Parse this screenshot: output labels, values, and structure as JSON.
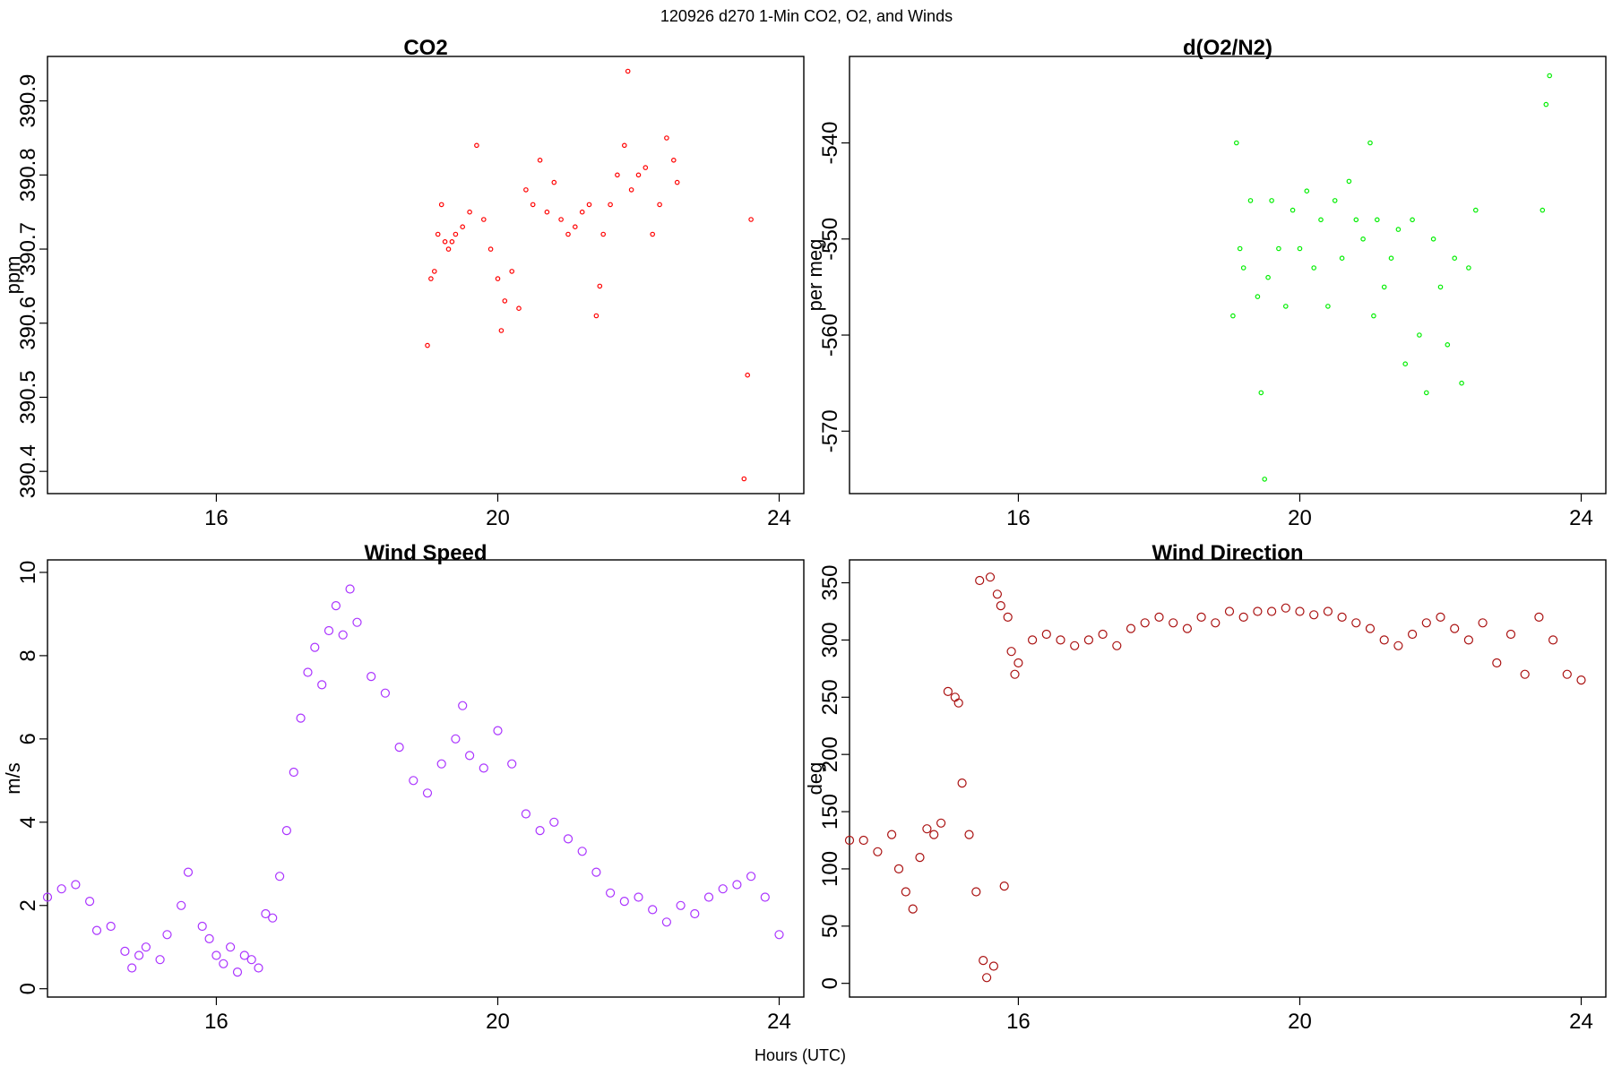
{
  "figure": {
    "title": "120926   d270   1-Min CO2, O2, and Winds",
    "xlabel": "Hours (UTC)"
  },
  "chart_data": [
    {
      "id": "co2",
      "type": "scatter",
      "title": "CO2",
      "xlabel": "",
      "ylabel": "ppm",
      "xlim": [
        13.6,
        24.35
      ],
      "ylim": [
        390.37,
        390.96
      ],
      "xticks": [
        16,
        20,
        24
      ],
      "yticks": [
        390.4,
        390.5,
        390.6,
        390.7,
        390.8,
        390.9
      ],
      "color": "#ff0000",
      "grid": false,
      "series": [
        {
          "x": [
            19.0,
            19.05,
            19.1,
            19.15,
            19.2,
            19.25,
            19.3,
            19.35,
            19.4,
            19.5,
            19.6,
            19.7,
            19.8,
            19.9,
            20.0,
            20.05,
            20.1,
            20.2,
            20.3,
            20.4,
            20.5,
            20.6,
            20.7,
            20.8,
            20.9,
            21.0,
            21.1,
            21.2,
            21.3,
            21.4,
            21.45,
            21.5,
            21.6,
            21.7,
            21.8,
            21.85,
            21.9,
            22.0,
            22.1,
            22.2,
            22.3,
            22.4,
            22.5,
            22.55,
            23.5,
            23.55,
            23.6
          ],
          "y": [
            390.57,
            390.66,
            390.67,
            390.72,
            390.76,
            390.71,
            390.7,
            390.71,
            390.72,
            390.73,
            390.75,
            390.84,
            390.74,
            390.7,
            390.66,
            390.59,
            390.63,
            390.67,
            390.62,
            390.78,
            390.76,
            390.82,
            390.75,
            390.79,
            390.74,
            390.72,
            390.73,
            390.75,
            390.76,
            390.61,
            390.65,
            390.72,
            390.76,
            390.8,
            390.84,
            390.94,
            390.78,
            390.8,
            390.81,
            390.72,
            390.76,
            390.85,
            390.82,
            390.79,
            390.39,
            390.53,
            390.74
          ]
        }
      ]
    },
    {
      "id": "o2",
      "type": "scatter",
      "title": "d(O2/N2)",
      "xlabel": "",
      "ylabel": "per meg",
      "xlim": [
        13.6,
        24.35
      ],
      "ylim": [
        -576.5,
        -531
      ],
      "xticks": [
        16,
        20,
        24
      ],
      "yticks": [
        -540,
        -550,
        -560,
        -570
      ],
      "color": "#00ee00",
      "grid": false,
      "series": [
        {
          "x": [
            19.05,
            19.1,
            19.15,
            19.2,
            19.3,
            19.4,
            19.45,
            19.5,
            19.55,
            19.6,
            19.7,
            19.8,
            19.9,
            20.0,
            20.1,
            20.2,
            20.3,
            20.4,
            20.5,
            20.6,
            20.7,
            20.8,
            20.9,
            21.0,
            21.05,
            21.1,
            21.2,
            21.3,
            21.4,
            21.5,
            21.6,
            21.7,
            21.8,
            21.9,
            22.0,
            22.1,
            22.2,
            22.3,
            22.4,
            22.5,
            23.45,
            23.5,
            23.55
          ],
          "y": [
            -558,
            -540,
            -551,
            -553,
            -546,
            -556,
            -566,
            -575,
            -554,
            -546,
            -551,
            -557,
            -547,
            -551,
            -545,
            -553,
            -548,
            -557,
            -546,
            -552,
            -544,
            -548,
            -550,
            -540,
            -558,
            -548,
            -555,
            -552,
            -549,
            -563,
            -548,
            -560,
            -566,
            -550,
            -555,
            -561,
            -552,
            -565,
            -553,
            -547,
            -547,
            -536,
            -533
          ]
        }
      ]
    },
    {
      "id": "wind-speed",
      "type": "scatter",
      "title": "Wind Speed",
      "xlabel": "",
      "ylabel": "m/s",
      "xlim": [
        13.6,
        24.35
      ],
      "ylim": [
        -0.2,
        10.3
      ],
      "xticks": [
        16,
        20,
        24
      ],
      "yticks": [
        0,
        2,
        4,
        6,
        8,
        10
      ],
      "color": "#aa33ff",
      "grid": false,
      "series": [
        {
          "x": [
            13.6,
            13.8,
            14.0,
            14.2,
            14.3,
            14.5,
            14.7,
            14.8,
            14.9,
            15.0,
            15.2,
            15.3,
            15.5,
            15.6,
            15.8,
            15.9,
            16.0,
            16.1,
            16.2,
            16.3,
            16.4,
            16.5,
            16.6,
            16.7,
            16.8,
            16.9,
            17.0,
            17.1,
            17.2,
            17.3,
            17.4,
            17.5,
            17.6,
            17.7,
            17.8,
            17.9,
            18.0,
            18.2,
            18.4,
            18.6,
            18.8,
            19.0,
            19.2,
            19.4,
            19.5,
            19.6,
            19.8,
            20.0,
            20.2,
            20.4,
            20.6,
            20.8,
            21.0,
            21.2,
            21.4,
            21.6,
            21.8,
            22.0,
            22.2,
            22.4,
            22.6,
            22.8,
            23.0,
            23.2,
            23.4,
            23.6,
            23.8,
            24.0
          ],
          "y": [
            2.2,
            2.4,
            2.5,
            2.1,
            1.4,
            1.5,
            0.9,
            0.5,
            0.8,
            1.0,
            0.7,
            1.3,
            2.0,
            2.8,
            1.5,
            1.2,
            0.8,
            0.6,
            1.0,
            0.4,
            0.8,
            0.7,
            0.5,
            1.8,
            1.7,
            2.7,
            3.8,
            5.2,
            6.5,
            7.6,
            8.2,
            7.3,
            8.6,
            9.2,
            8.5,
            9.6,
            8.8,
            7.5,
            7.1,
            5.8,
            5.0,
            4.7,
            5.4,
            6.0,
            6.8,
            5.6,
            5.3,
            6.2,
            5.4,
            4.2,
            3.8,
            4.0,
            3.6,
            3.3,
            2.8,
            2.3,
            2.1,
            2.2,
            1.9,
            1.6,
            2.0,
            1.8,
            2.2,
            2.4,
            2.5,
            2.7,
            2.2,
            1.3
          ]
        }
      ]
    },
    {
      "id": "wind-direction",
      "type": "scatter",
      "title": "Wind Direction",
      "xlabel": "",
      "ylabel": "deg",
      "xlim": [
        13.6,
        24.35
      ],
      "ylim": [
        -12,
        370
      ],
      "xticks": [
        16,
        20,
        24
      ],
      "yticks": [
        0,
        50,
        100,
        150,
        200,
        250,
        300,
        350
      ],
      "color": "#aa1111",
      "grid": false,
      "series": [
        {
          "x": [
            13.6,
            13.8,
            14.0,
            14.2,
            14.3,
            14.4,
            14.5,
            14.6,
            14.7,
            14.8,
            14.9,
            15.0,
            15.1,
            15.15,
            15.2,
            15.3,
            15.4,
            15.45,
            15.5,
            15.55,
            15.6,
            15.65,
            15.7,
            15.75,
            15.8,
            15.85,
            15.9,
            15.95,
            16.0,
            16.2,
            16.4,
            16.6,
            16.8,
            17.0,
            17.2,
            17.4,
            17.6,
            17.8,
            18.0,
            18.2,
            18.4,
            18.6,
            18.8,
            19.0,
            19.2,
            19.4,
            19.6,
            19.8,
            20.0,
            20.2,
            20.4,
            20.6,
            20.8,
            21.0,
            21.2,
            21.4,
            21.6,
            21.8,
            22.0,
            22.2,
            22.4,
            22.6,
            22.8,
            23.0,
            23.2,
            23.4,
            23.6,
            23.8,
            24.0
          ],
          "y": [
            125,
            125,
            115,
            130,
            100,
            80,
            65,
            110,
            135,
            130,
            140,
            255,
            250,
            245,
            175,
            130,
            80,
            352,
            20,
            5,
            355,
            15,
            340,
            330,
            85,
            320,
            290,
            270,
            280,
            300,
            305,
            300,
            295,
            300,
            305,
            295,
            310,
            315,
            320,
            315,
            310,
            320,
            315,
            325,
            320,
            325,
            325,
            328,
            325,
            322,
            325,
            320,
            315,
            310,
            300,
            295,
            305,
            315,
            320,
            310,
            300,
            315,
            280,
            305,
            270,
            320,
            300,
            270,
            265
          ]
        }
      ]
    }
  ]
}
